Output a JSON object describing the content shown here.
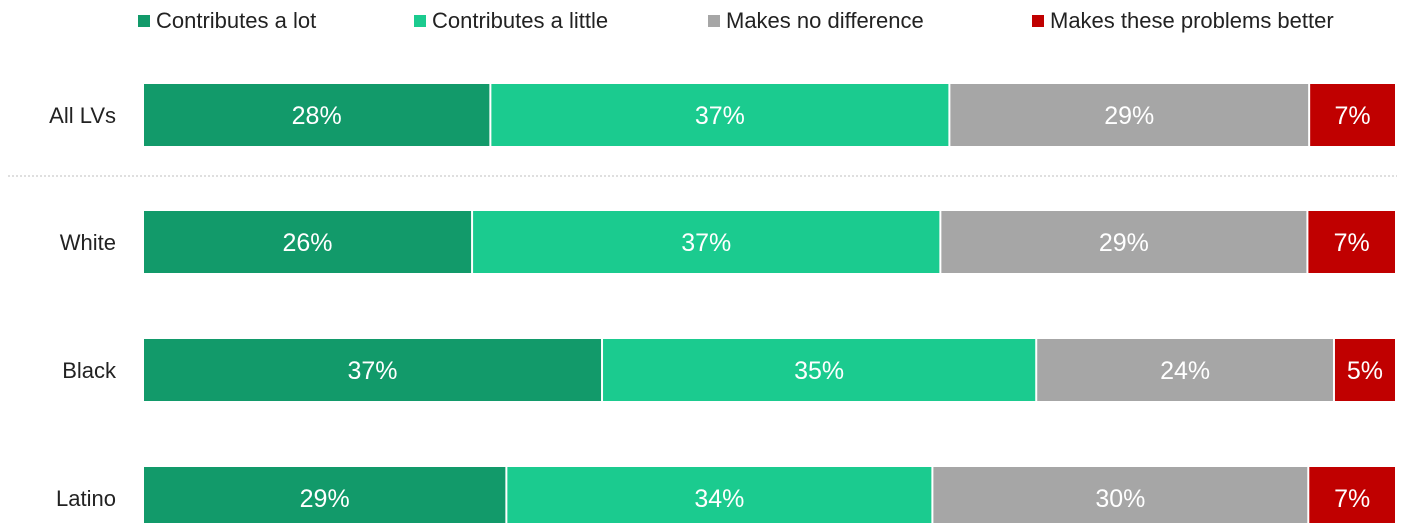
{
  "chart_data": {
    "type": "bar",
    "orientation": "horizontal",
    "stacked": true,
    "categories": [
      "All LVs",
      "White",
      "Black",
      "Latino"
    ],
    "series": [
      {
        "name": "Contributes a lot",
        "color": "#129a6a",
        "values": [
          28,
          26,
          37,
          29
        ],
        "labels": [
          "28%",
          "26%",
          "37%",
          "29%"
        ]
      },
      {
        "name": "Contributes a little",
        "color": "#1bcb8f",
        "values": [
          37,
          37,
          35,
          34
        ],
        "labels": [
          "37%",
          "37%",
          "35%",
          "34%"
        ]
      },
      {
        "name": "Makes no difference",
        "color": "#a6a6a6",
        "values": [
          29,
          29,
          24,
          30
        ],
        "labels": [
          "29%",
          "29%",
          "24%",
          "30%"
        ]
      },
      {
        "name": "Makes these problems better",
        "color": "#c00000",
        "values": [
          7,
          7,
          5,
          7
        ],
        "labels": [
          "7%",
          "7%",
          "5%",
          "7%"
        ]
      }
    ],
    "legend_position": "top",
    "grid": false,
    "separator_after_first_row": true
  }
}
